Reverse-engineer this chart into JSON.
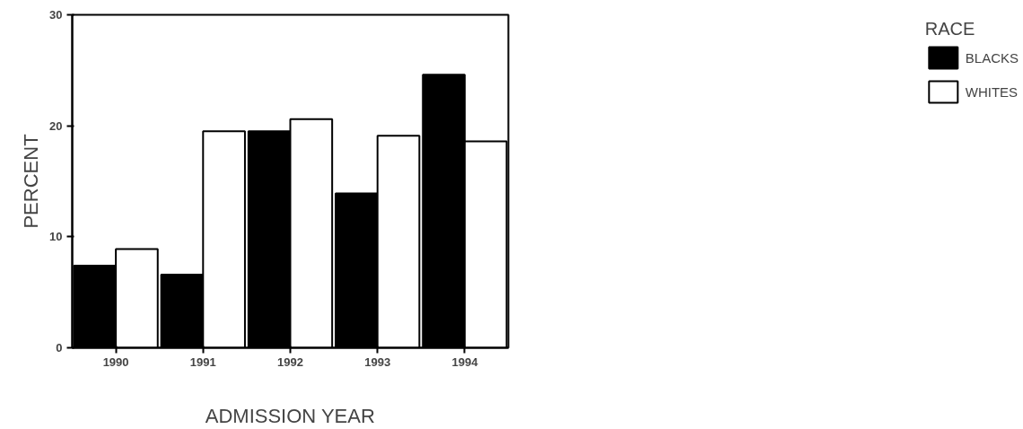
{
  "chart_data": {
    "type": "bar",
    "xlabel": "ADMISSION YEAR",
    "ylabel": "PERCENT",
    "legend_title": "RACE",
    "categories": [
      "1990",
      "1991",
      "1992",
      "1993",
      "1994"
    ],
    "series": [
      {
        "name": "BLACKS",
        "color": "#000000",
        "values": [
          7.4,
          6.6,
          19.5,
          13.9,
          24.6
        ]
      },
      {
        "name": "WHITES",
        "color": "#ffffff",
        "values": [
          8.9,
          19.5,
          20.6,
          19.1,
          18.6
        ]
      }
    ],
    "ylim": [
      0,
      30
    ],
    "yticks": [
      0,
      10,
      20,
      30
    ],
    "grid": false,
    "legend": "right"
  }
}
